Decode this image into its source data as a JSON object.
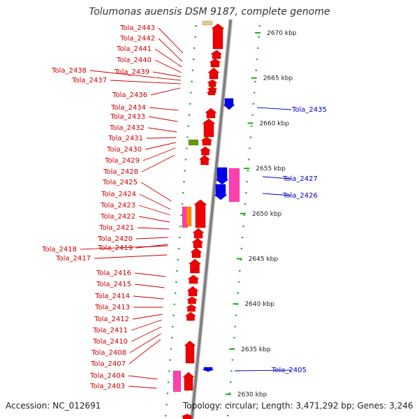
{
  "header": {
    "title": "Tolumonas auensis DSM 9187, complete genome"
  },
  "footer": {
    "accession": "Accession: NC_012691",
    "topology": "Topology: circular; Length: 3,471,292 bp; Genes: 3,246"
  },
  "colors": {
    "cds": "#ee0000",
    "trna": "#ff3fae",
    "rrna": "#ff8c00",
    "misc": "#669900",
    "reverse": "#0000ee",
    "backbone": "#808080"
  },
  "scale_ticks": [
    {
      "label": "2670 kbp",
      "kbp": 2670
    },
    {
      "label": "2665 kbp",
      "kbp": 2665
    },
    {
      "label": "2660 kbp",
      "kbp": 2660
    },
    {
      "label": "2655 kbp",
      "kbp": 2655
    },
    {
      "label": "2650 kbp",
      "kbp": 2650
    },
    {
      "label": "2645 kbp",
      "kbp": 2645
    },
    {
      "label": "2640 kbp",
      "kbp": 2640
    },
    {
      "label": "2635 kbp",
      "kbp": 2635
    },
    {
      "label": "2630 kbp",
      "kbp": 2630
    }
  ],
  "left_genes": [
    "Tola_2443",
    "Tola_2442",
    "Tola_2441",
    "Tola_2440",
    "Tola_2439",
    "Tola_2438",
    "Tola_2437",
    "Tola_2436",
    "Tola_2434",
    "Tola_2433",
    "Tola_2432",
    "Tola_2431",
    "Tola_2430",
    "Tola_2429",
    "Tola_2428",
    "Tola_2425",
    "Tola_2424",
    "Tola_2423",
    "Tola_2422",
    "Tola_2421",
    "Tola_2420",
    "Tola_2419",
    "Tola_2418",
    "Tola_2417",
    "Tola_2416",
    "Tola_2415",
    "Tola_2414",
    "Tola_2413",
    "Tola_2412",
    "Tola_2411",
    "Tola_2410",
    "Tola_2408",
    "Tola_2407",
    "Tola_2404",
    "Tola_2403"
  ],
  "right_genes": [
    {
      "label": "Tola_2435"
    },
    {
      "label": "Tola_2427"
    },
    {
      "label": "Tola_2426"
    },
    {
      "label": "Tola_2405"
    }
  ]
}
